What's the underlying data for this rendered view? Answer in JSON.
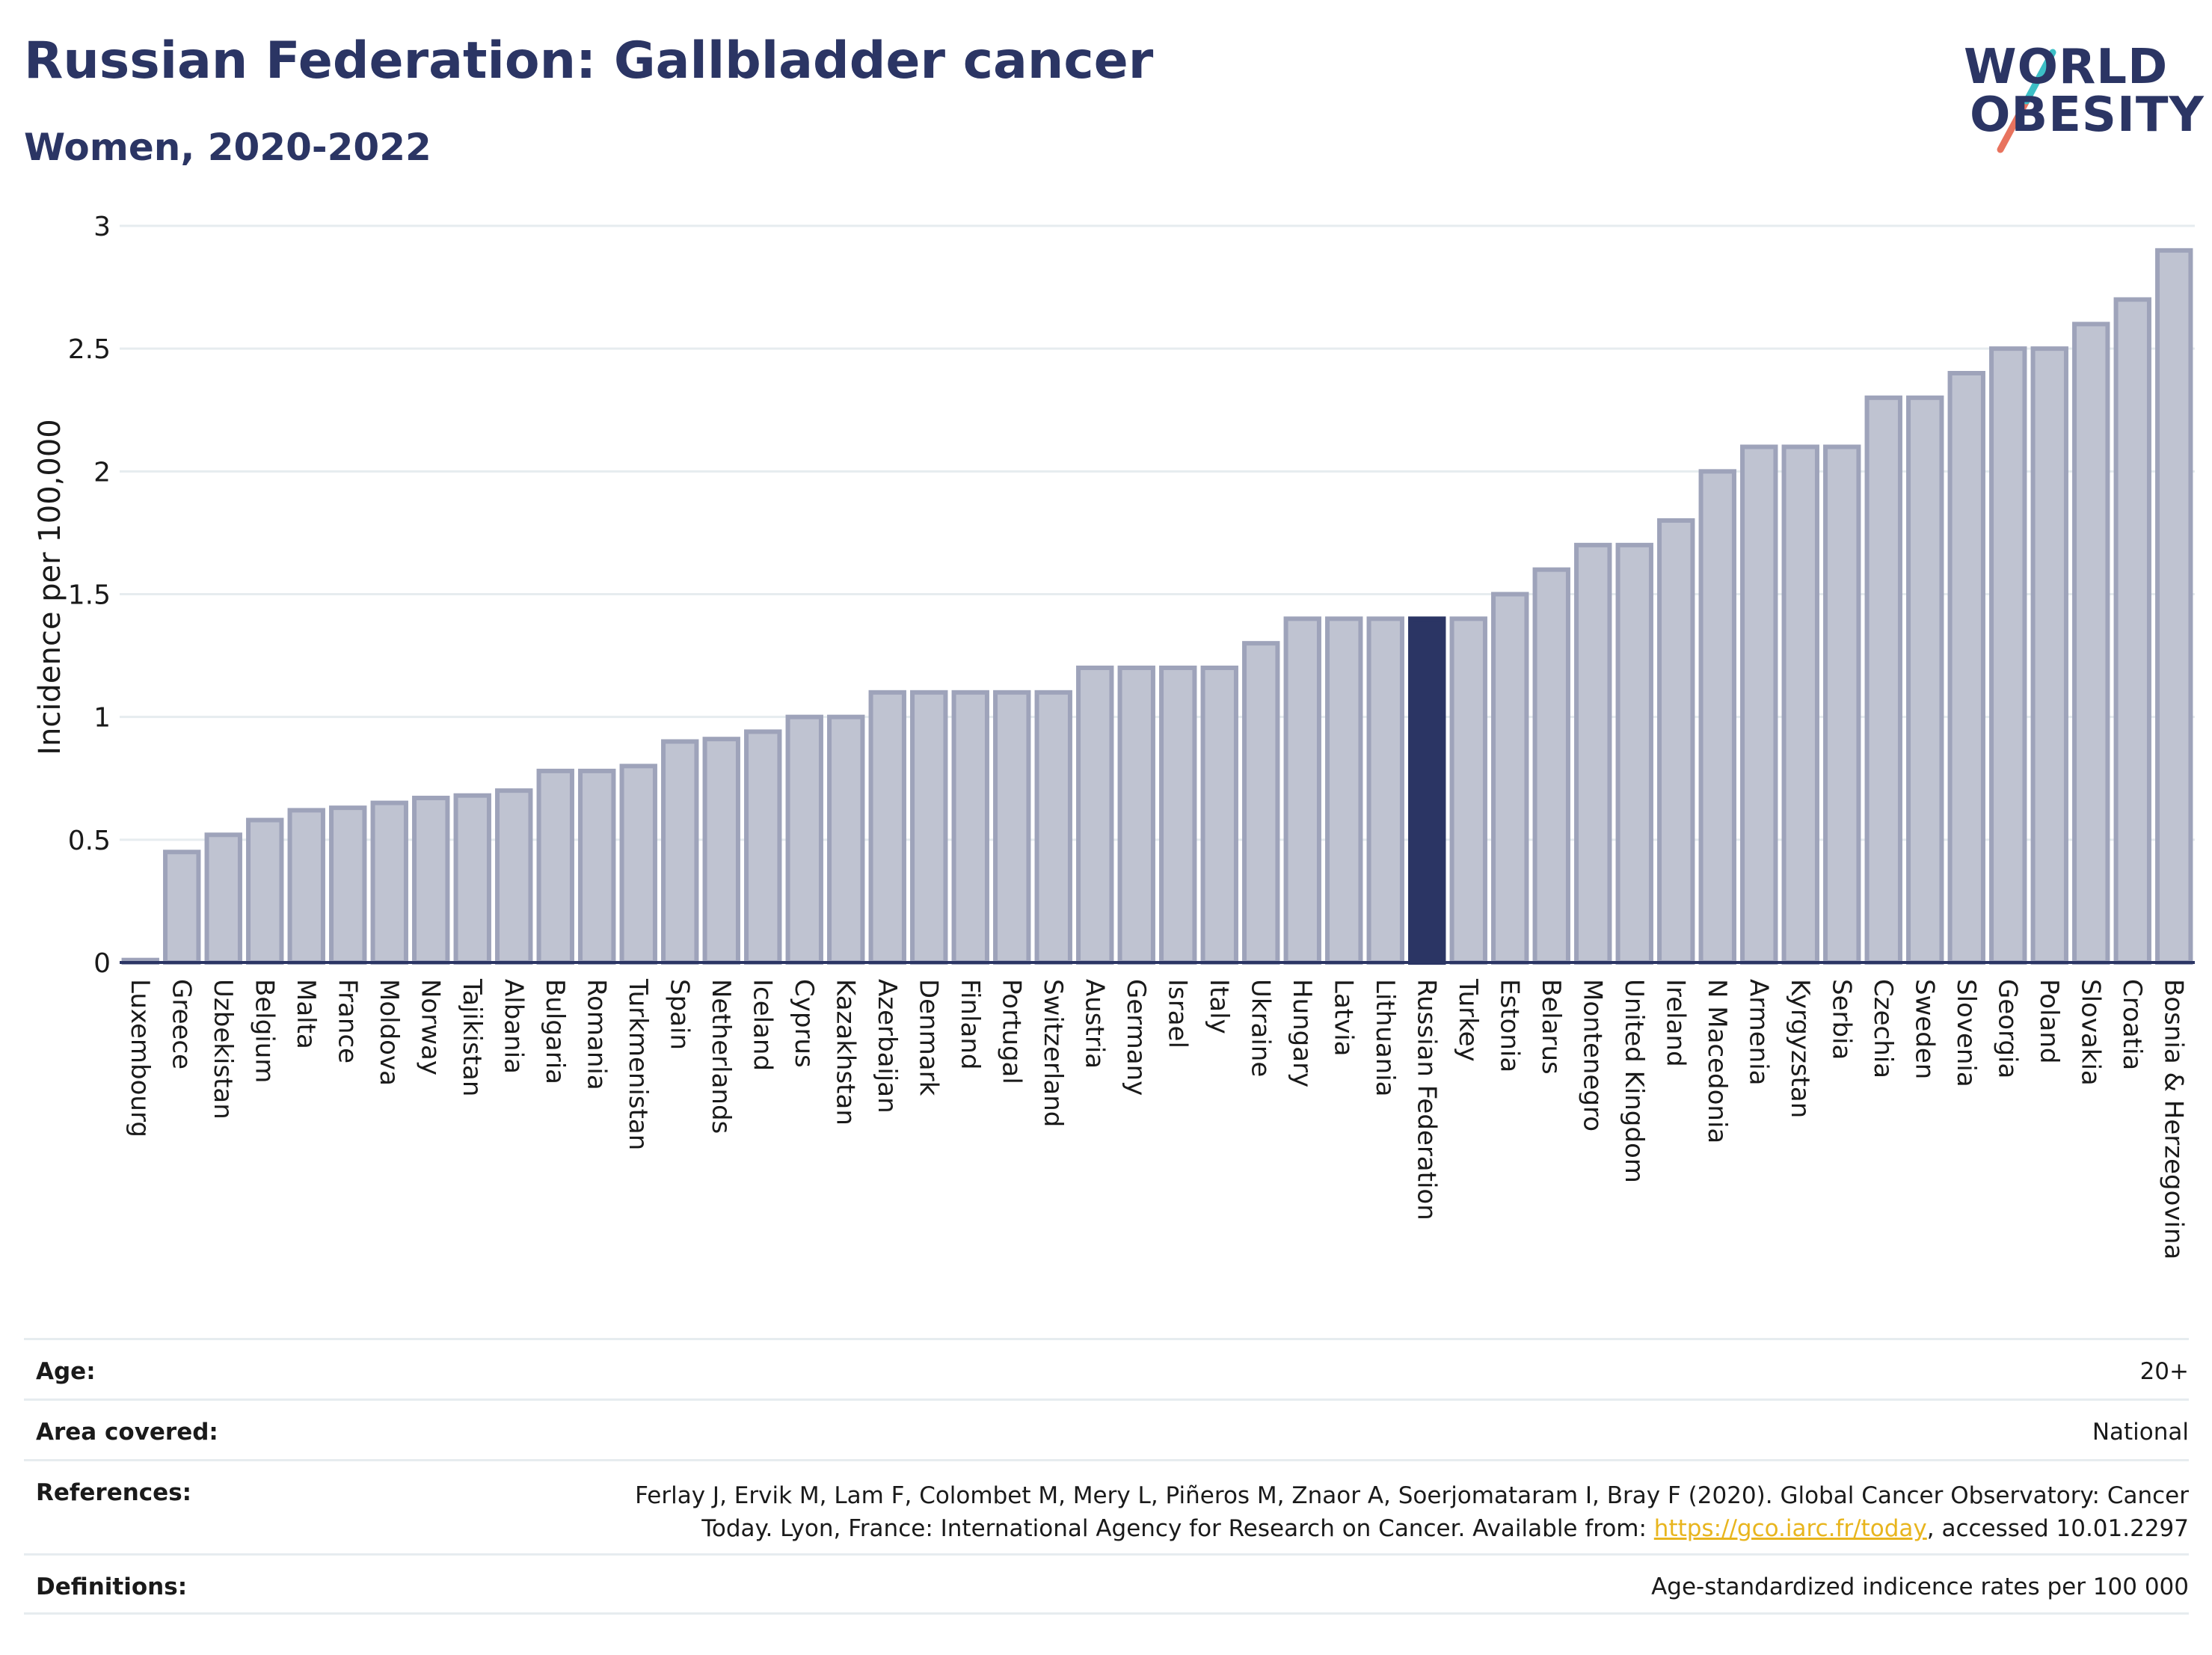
{
  "header": {
    "title": "Russian Federation: Gallbladder cancer",
    "subtitle": "Women, 2020-2022"
  },
  "logo": {
    "line1": "WORLD",
    "line2": "OBESITY"
  },
  "colors": {
    "title": "#2b3564",
    "bar_default": "#bfc3d1",
    "bar_border": "#9ea3ba",
    "bar_highlight": "#2b3564",
    "link": "#e8b51e",
    "logo_slash_teal": "#3cbfc6",
    "logo_slash_coral": "#e8735e"
  },
  "chart_data": {
    "type": "bar",
    "ylabel": "Incidence per 100,000",
    "ylim": [
      0,
      3
    ],
    "yticks": [
      0,
      0.5,
      1,
      1.5,
      2,
      2.5,
      3
    ],
    "ytick_labels": [
      "0",
      "0.5",
      "1",
      "1.5",
      "2",
      "2.5",
      "3"
    ],
    "grid": true,
    "highlight": "Russian Federation",
    "categories": [
      "Luxembourg",
      "Greece",
      "Uzbekistan",
      "Belgium",
      "Malta",
      "France",
      "Moldova",
      "Norway",
      "Tajikistan",
      "Albania",
      "Bulgaria",
      "Romania",
      "Turkmenistan",
      "Spain",
      "Netherlands",
      "Iceland",
      "Cyprus",
      "Kazakhstan",
      "Azerbaijan",
      "Denmark",
      "Finland",
      "Portugal",
      "Switzerland",
      "Austria",
      "Germany",
      "Israel",
      "Italy",
      "Ukraine",
      "Hungary",
      "Latvia",
      "Lithuania",
      "Russian Federation",
      "Turkey",
      "Estonia",
      "Belarus",
      "Montenegro",
      "United Kingdom",
      "Ireland",
      "N Macedonia",
      "Armenia",
      "Kyrgyzstan",
      "Serbia",
      "Czechia",
      "Sweden",
      "Slovenia",
      "Georgia",
      "Poland",
      "Slovakia",
      "Croatia",
      "Bosnia & Herzegovina"
    ],
    "values": [
      0.01,
      0.45,
      0.52,
      0.58,
      0.62,
      0.63,
      0.65,
      0.67,
      0.68,
      0.7,
      0.78,
      0.78,
      0.8,
      0.9,
      0.91,
      0.94,
      1.0,
      1.0,
      1.1,
      1.1,
      1.1,
      1.1,
      1.1,
      1.2,
      1.2,
      1.2,
      1.2,
      1.3,
      1.4,
      1.4,
      1.4,
      1.4,
      1.4,
      1.5,
      1.6,
      1.7,
      1.7,
      1.8,
      2.0,
      2.1,
      2.1,
      2.1,
      2.3,
      2.3,
      2.4,
      2.5,
      2.5,
      2.6,
      2.7,
      2.9
    ]
  },
  "meta": {
    "age_label": "Age:",
    "age_value": "20+",
    "area_label": "Area covered:",
    "area_value": "National",
    "references_label": "References:",
    "references_text": "Ferlay J, Ervik M, Lam F, Colombet M, Mery L, Piñeros M, Znaor A, Soerjomataram I, Bray F (2020). Global Cancer Observatory: Cancer Today. Lyon, France: International Agency for Research on Cancer. Available from:",
    "references_link": "https://gco.iarc.fr/today",
    "references_suffix": ", accessed 10.01.2297",
    "definitions_label": "Definitions:",
    "definitions_value": "Age-standardized indicence rates per 100 000"
  }
}
